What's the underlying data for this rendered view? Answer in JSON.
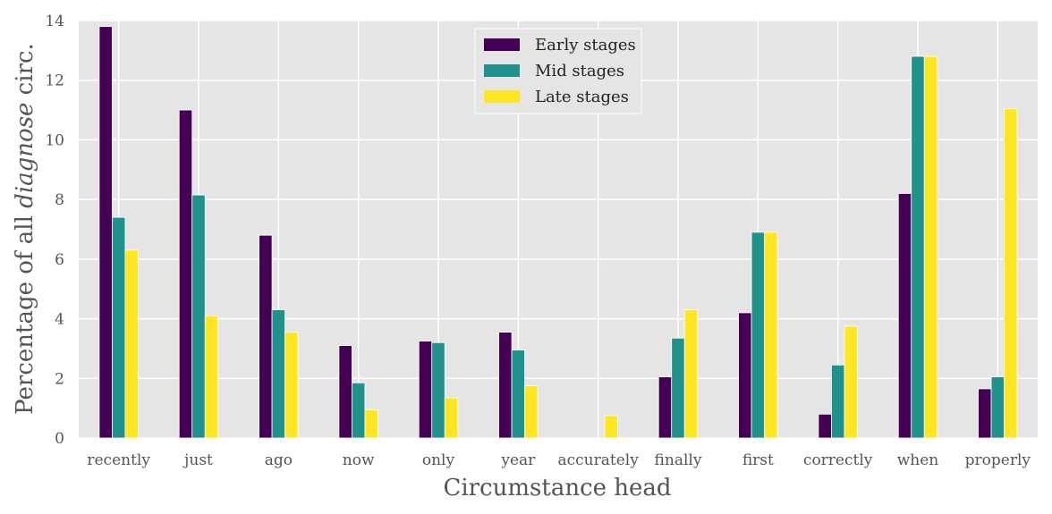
{
  "chart_data": {
    "type": "bar",
    "xlabel": "Circumstance head",
    "ylabel_parts": [
      "Percentage of all ",
      "diagnose",
      " circ."
    ],
    "categories": [
      "recently",
      "just",
      "ago",
      "now",
      "only",
      "year",
      "accurately",
      "finally",
      "first",
      "correctly",
      "when",
      "properly"
    ],
    "ylim": [
      0,
      14
    ],
    "yticks": [
      0,
      2,
      4,
      6,
      8,
      10,
      12,
      14
    ],
    "grid": true,
    "legend_position": "top-center",
    "series": [
      {
        "name": "Early stages",
        "color": "#440154",
        "values": [
          13.8,
          11.0,
          6.8,
          3.1,
          3.25,
          3.55,
          0.0,
          2.05,
          4.2,
          0.8,
          8.2,
          1.65
        ]
      },
      {
        "name": "Mid stages",
        "color": "#21918c",
        "values": [
          7.4,
          8.15,
          4.3,
          1.85,
          3.2,
          2.95,
          0.0,
          3.35,
          6.9,
          2.45,
          12.8,
          2.05
        ]
      },
      {
        "name": "Late stages",
        "color": "#fde725",
        "values": [
          6.3,
          4.1,
          3.55,
          0.95,
          1.35,
          1.75,
          0.75,
          4.3,
          6.9,
          3.75,
          12.8,
          11.05
        ]
      }
    ],
    "plot_background": "#e5e5e5",
    "grid_color": "#ffffff"
  }
}
